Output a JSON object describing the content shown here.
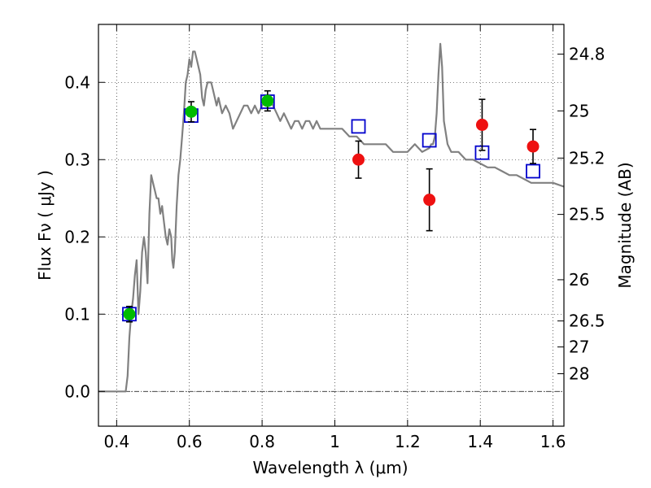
{
  "chart_data": {
    "type": "scatter",
    "title": "",
    "xlabel": "Wavelength  λ (μm)",
    "ylabel": "Flux  Fν  ( μJy )",
    "y2label": "Magnitude (AB)",
    "xlim": [
      0.35,
      1.63
    ],
    "ylim": [
      -0.045,
      0.475
    ],
    "grid": true,
    "legend": "none",
    "x_ticks": [
      {
        "value": 0.4,
        "label": "0.4"
      },
      {
        "value": 0.6,
        "label": "0.6"
      },
      {
        "value": 0.8,
        "label": "0.8"
      },
      {
        "value": 1.0,
        "label": "1"
      },
      {
        "value": 1.2,
        "label": "1.2"
      },
      {
        "value": 1.4,
        "label": "1.4"
      },
      {
        "value": 1.6,
        "label": "1.6"
      }
    ],
    "y_ticks": [
      {
        "value": 0.0,
        "label": "0.0"
      },
      {
        "value": 0.1,
        "label": "0.1"
      },
      {
        "value": 0.2,
        "label": "0.2"
      },
      {
        "value": 0.3,
        "label": "0.3"
      },
      {
        "value": 0.4,
        "label": "0.4"
      }
    ],
    "magnitude_ticks": [
      {
        "label": "24.8"
      },
      {
        "label": "25"
      },
      {
        "label": "25.2"
      },
      {
        "label": "25.5"
      },
      {
        "label": "26"
      },
      {
        "label": "26.5"
      },
      {
        "label": "27"
      },
      {
        "label": "28"
      }
    ],
    "zero_line": 0.0,
    "series": [
      {
        "marker": "line",
        "color": "#808080",
        "x": [
          0.35,
          0.4,
          0.41,
          0.415,
          0.42,
          0.425,
          0.43,
          0.435,
          0.44,
          0.445,
          0.45,
          0.455,
          0.46,
          0.465,
          0.47,
          0.475,
          0.48,
          0.485,
          0.49,
          0.495,
          0.5,
          0.505,
          0.51,
          0.515,
          0.52,
          0.525,
          0.53,
          0.535,
          0.54,
          0.545,
          0.55,
          0.553,
          0.556,
          0.56,
          0.565,
          0.57,
          0.575,
          0.58,
          0.585,
          0.59,
          0.595,
          0.6,
          0.605,
          0.61,
          0.615,
          0.62,
          0.625,
          0.63,
          0.635,
          0.64,
          0.645,
          0.65,
          0.655,
          0.66,
          0.665,
          0.67,
          0.675,
          0.68,
          0.685,
          0.69,
          0.7,
          0.71,
          0.72,
          0.73,
          0.74,
          0.75,
          0.76,
          0.77,
          0.78,
          0.79,
          0.8,
          0.81,
          0.82,
          0.83,
          0.84,
          0.85,
          0.86,
          0.87,
          0.88,
          0.89,
          0.9,
          0.91,
          0.92,
          0.93,
          0.94,
          0.95,
          0.96,
          0.97,
          0.98,
          0.99,
          1.0,
          1.02,
          1.04,
          1.06,
          1.08,
          1.1,
          1.12,
          1.14,
          1.16,
          1.18,
          1.19,
          1.2,
          1.22,
          1.24,
          1.26,
          1.265,
          1.27,
          1.275,
          1.28,
          1.285,
          1.29,
          1.295,
          1.3,
          1.31,
          1.32,
          1.34,
          1.36,
          1.38,
          1.4,
          1.42,
          1.44,
          1.46,
          1.48,
          1.5,
          1.52,
          1.54,
          1.56,
          1.58,
          1.6,
          1.63
        ],
        "y": [
          0.0,
          0.0,
          0.0,
          0.0,
          0.0,
          0.0,
          0.02,
          0.07,
          0.1,
          0.12,
          0.15,
          0.17,
          0.1,
          0.13,
          0.18,
          0.2,
          0.18,
          0.14,
          0.23,
          0.28,
          0.27,
          0.26,
          0.25,
          0.25,
          0.23,
          0.24,
          0.22,
          0.2,
          0.19,
          0.21,
          0.2,
          0.17,
          0.16,
          0.18,
          0.24,
          0.28,
          0.3,
          0.33,
          0.36,
          0.4,
          0.41,
          0.43,
          0.42,
          0.44,
          0.44,
          0.43,
          0.42,
          0.41,
          0.38,
          0.37,
          0.39,
          0.4,
          0.4,
          0.4,
          0.39,
          0.38,
          0.37,
          0.38,
          0.37,
          0.36,
          0.37,
          0.36,
          0.34,
          0.35,
          0.36,
          0.37,
          0.37,
          0.36,
          0.37,
          0.36,
          0.37,
          0.38,
          0.38,
          0.37,
          0.36,
          0.35,
          0.36,
          0.35,
          0.34,
          0.35,
          0.35,
          0.34,
          0.35,
          0.35,
          0.34,
          0.35,
          0.34,
          0.34,
          0.34,
          0.34,
          0.34,
          0.34,
          0.33,
          0.33,
          0.32,
          0.32,
          0.32,
          0.32,
          0.31,
          0.31,
          0.31,
          0.31,
          0.32,
          0.31,
          0.315,
          0.32,
          0.32,
          0.33,
          0.36,
          0.41,
          0.45,
          0.42,
          0.35,
          0.32,
          0.31,
          0.31,
          0.3,
          0.3,
          0.295,
          0.29,
          0.29,
          0.285,
          0.28,
          0.28,
          0.275,
          0.27,
          0.27,
          0.27,
          0.27,
          0.265
        ]
      },
      {
        "marker": "square",
        "color": "#0000cc",
        "x": [
          0.435,
          0.605,
          0.815,
          1.065,
          1.26,
          1.405,
          1.545
        ],
        "y": [
          0.1,
          0.357,
          0.375,
          0.343,
          0.325,
          0.309,
          0.285
        ]
      },
      {
        "marker": "circle",
        "color": "#00bb00",
        "x": [
          0.435,
          0.605,
          0.815
        ],
        "y": [
          0.1,
          0.362,
          0.376
        ],
        "err": [
          0.01,
          0.013,
          0.013
        ]
      },
      {
        "marker": "circle",
        "color": "#ee1111",
        "x": [
          1.065,
          1.26,
          1.405,
          1.545
        ],
        "y": [
          0.3,
          0.248,
          0.345,
          0.317
        ],
        "err": [
          0.024,
          0.04,
          0.033,
          0.022
        ]
      }
    ]
  }
}
